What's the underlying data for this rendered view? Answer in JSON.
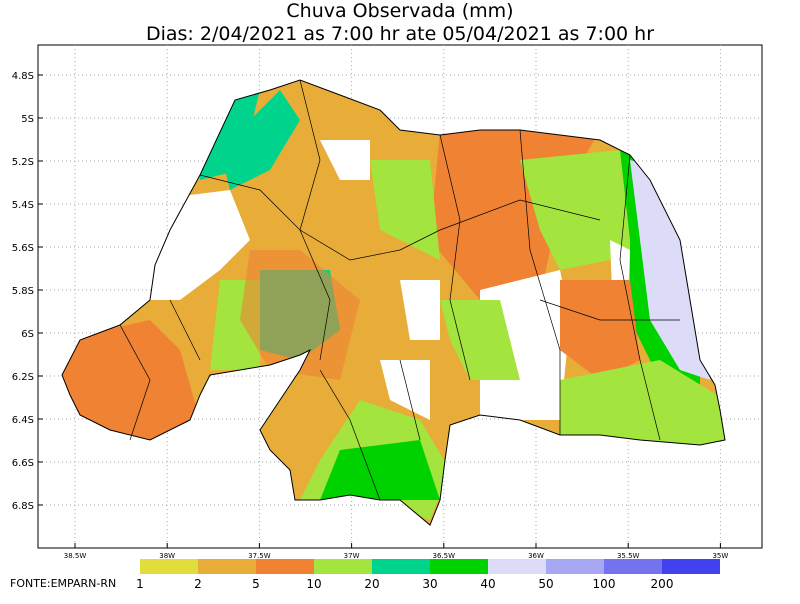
{
  "title": "Chuva Observada (mm)",
  "subtitle": "Dias: 2/04/2021 as 7:00 hr ate 05/04/2021 as 7:00 hr",
  "latitude_labels": [
    "4.8S",
    "5S",
    "5.2S",
    "5.4S",
    "5.6S",
    "5.8S",
    "6S",
    "6.2S",
    "6.4S",
    "6.6S",
    "6.8S"
  ],
  "longitude_labels": [
    "38.5W",
    "38W",
    "37.5W",
    "37W",
    "36.5W",
    "36W",
    "35.5W",
    "35W"
  ],
  "legend": {
    "labels": [
      "1",
      "2",
      "5",
      "10",
      "20",
      "30",
      "40",
      "50",
      "100",
      "200"
    ],
    "colors": [
      "#e1dd3c",
      "#e8ad38",
      "#ef8233",
      "#a4e43e",
      "#00d38c",
      "#00d200",
      "#dcdcf8",
      "#a8a8f2",
      "#7373f0",
      "#4141f0"
    ]
  },
  "source": "FONTE:EMPARN-RN"
}
